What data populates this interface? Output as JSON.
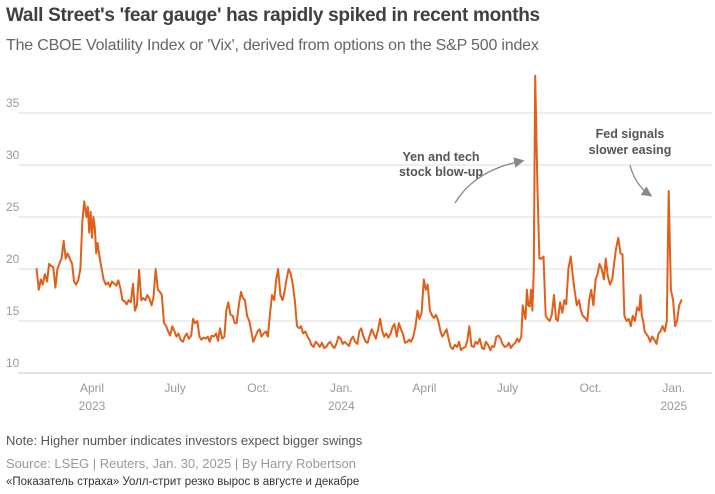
{
  "header": {
    "title": "Wall Street's 'fear gauge' has rapidly spiked in recent months",
    "subtitle": "The CBOE Volatility Index or 'Vix', derived from options on the S&P 500 index"
  },
  "footer": {
    "note": "Note: Higher number indicates investors expect bigger swings",
    "source": "Source: LSEG | Reuters, Jan. 30, 2025 | By Harry Robertson",
    "caption": "«Показатель страха» Уолл-стрит резко вырос в августе и декабре"
  },
  "colors": {
    "line": "#e0601b",
    "grid": "#dddddd",
    "axis": "#999999",
    "annotation": "#555555",
    "arrow": "#888888"
  },
  "chart_data": {
    "type": "line",
    "title": "Wall Street's 'fear gauge' has rapidly spiked in recent months",
    "subtitle": "The CBOE Volatility Index or 'Vix', derived from options on the S&P 500 index",
    "xlabel": "",
    "ylabel": "",
    "ylim": [
      10,
      38
    ],
    "yticks": [
      10,
      15,
      20,
      25,
      30,
      35
    ],
    "grid": true,
    "legend": "none",
    "x_range_months": [
      0,
      24.3
    ],
    "x_origin": "2023-01-01",
    "xticks": [
      {
        "month": 3,
        "label": "April",
        "sublabel": "2023"
      },
      {
        "month": 6,
        "label": "July",
        "sublabel": ""
      },
      {
        "month": 9,
        "label": "Oct.",
        "sublabel": ""
      },
      {
        "month": 12,
        "label": "Jan.",
        "sublabel": "2024"
      },
      {
        "month": 15,
        "label": "April",
        "sublabel": ""
      },
      {
        "month": 18,
        "label": "July",
        "sublabel": ""
      },
      {
        "month": 21,
        "label": "Oct.",
        "sublabel": ""
      },
      {
        "month": 24,
        "label": "Jan.",
        "sublabel": "2025"
      }
    ],
    "series": [
      {
        "name": "VIX",
        "x_months": [
          1.0,
          1.08,
          1.15,
          1.22,
          1.3,
          1.38,
          1.45,
          1.52,
          1.6,
          1.68,
          1.75,
          1.82,
          1.9,
          1.98,
          2.05,
          2.12,
          2.2,
          2.28,
          2.35,
          2.42,
          2.5,
          2.58,
          2.65,
          2.72,
          2.8,
          2.85,
          2.9,
          2.95,
          3.0,
          3.05,
          3.1,
          3.15,
          3.2,
          3.28,
          3.35,
          3.42,
          3.5,
          3.58,
          3.65,
          3.72,
          3.8,
          3.88,
          3.95,
          4.02,
          4.1,
          4.18,
          4.25,
          4.32,
          4.4,
          4.48,
          4.55,
          4.62,
          4.7,
          4.78,
          4.85,
          4.92,
          5.0,
          5.08,
          5.15,
          5.22,
          5.3,
          5.38,
          5.45,
          5.52,
          5.6,
          5.68,
          5.75,
          5.82,
          5.9,
          5.98,
          6.05,
          6.12,
          6.2,
          6.28,
          6.35,
          6.42,
          6.5,
          6.58,
          6.65,
          6.72,
          6.8,
          6.88,
          6.95,
          7.02,
          7.1,
          7.18,
          7.25,
          7.32,
          7.4,
          7.48,
          7.55,
          7.62,
          7.7,
          7.78,
          7.85,
          7.92,
          8.0,
          8.08,
          8.15,
          8.22,
          8.3,
          8.38,
          8.45,
          8.52,
          8.6,
          8.68,
          8.75,
          8.82,
          8.9,
          8.98,
          9.05,
          9.12,
          9.2,
          9.28,
          9.35,
          9.42,
          9.5,
          9.58,
          9.65,
          9.72,
          9.8,
          9.88,
          9.95,
          10.02,
          10.1,
          10.18,
          10.25,
          10.32,
          10.4,
          10.48,
          10.55,
          10.62,
          10.7,
          10.78,
          10.85,
          10.92,
          11.0,
          11.08,
          11.15,
          11.22,
          11.3,
          11.38,
          11.45,
          11.52,
          11.6,
          11.68,
          11.75,
          11.82,
          11.9,
          11.98,
          12.05,
          12.12,
          12.2,
          12.28,
          12.35,
          12.42,
          12.5,
          12.58,
          12.65,
          12.72,
          12.8,
          12.88,
          12.95,
          13.02,
          13.1,
          13.18,
          13.25,
          13.32,
          13.4,
          13.48,
          13.55,
          13.62,
          13.7,
          13.78,
          13.85,
          13.92,
          14.0,
          14.08,
          14.15,
          14.22,
          14.3,
          14.38,
          14.45,
          14.52,
          14.6,
          14.68,
          14.75,
          14.82,
          14.9,
          14.98,
          15.05,
          15.12,
          15.2,
          15.28,
          15.35,
          15.42,
          15.5,
          15.58,
          15.65,
          15.72,
          15.8,
          15.88,
          15.95,
          16.02,
          16.1,
          16.18,
          16.25,
          16.32,
          16.4,
          16.48,
          16.55,
          16.62,
          16.7,
          16.78,
          16.85,
          16.92,
          17.0,
          17.08,
          17.15,
          17.22,
          17.3,
          17.38,
          17.45,
          17.52,
          17.6,
          17.68,
          17.75,
          17.82,
          17.9,
          17.98,
          18.05,
          18.12,
          18.2,
          18.28,
          18.35,
          18.42,
          18.5,
          18.55,
          18.6,
          18.65,
          18.7,
          18.75,
          18.8,
          18.85,
          18.9,
          18.95,
          19.0,
          19.08,
          19.15,
          19.22,
          19.3,
          19.38,
          19.45,
          19.52,
          19.6,
          19.68,
          19.75,
          19.82,
          19.9,
          19.98,
          20.05,
          20.12,
          20.2,
          20.28,
          20.35,
          20.42,
          20.5,
          20.58,
          20.65,
          20.72,
          20.8,
          20.88,
          20.95,
          21.02,
          21.1,
          21.18,
          21.25,
          21.32,
          21.4,
          21.48,
          21.55,
          21.62,
          21.7,
          21.78,
          21.85,
          21.92,
          22.0,
          22.08,
          22.15,
          22.22,
          22.3,
          22.38,
          22.45,
          22.52,
          22.6,
          22.68,
          22.75,
          22.8,
          22.85,
          22.9,
          22.95,
          23.0,
          23.08,
          23.15,
          23.22,
          23.3,
          23.38,
          23.45,
          23.52,
          23.6,
          23.68,
          23.75,
          23.82,
          23.9,
          23.98,
          24.05,
          24.12,
          24.2,
          24.28
        ],
        "values": [
          20.0,
          18.0,
          19.0,
          18.5,
          19.5,
          18.8,
          20.5,
          20.3,
          20.2,
          18.2,
          20.0,
          20.5,
          21.0,
          22.7,
          21.0,
          21.5,
          21.0,
          20.5,
          18.8,
          18.5,
          18.9,
          20.0,
          24.5,
          26.5,
          25.0,
          26.0,
          23.5,
          25.5,
          23.0,
          25.0,
          24.0,
          21.5,
          22.5,
          21.0,
          20.0,
          19.0,
          18.5,
          18.7,
          18.3,
          18.8,
          18.6,
          18.4,
          18.9,
          18.2,
          17.0,
          16.9,
          16.6,
          17.0,
          16.8,
          18.6,
          16.0,
          16.5,
          19.9,
          17.0,
          17.2,
          17.0,
          17.5,
          17.1,
          16.5,
          17.3,
          20.0,
          18.0,
          17.8,
          17.5,
          14.8,
          14.5,
          14.0,
          13.6,
          14.5,
          14.0,
          13.5,
          13.8,
          13.2,
          13.0,
          13.5,
          13.8,
          13.3,
          13.6,
          15.2,
          14.8,
          15.0,
          13.5,
          13.2,
          13.4,
          13.3,
          13.5,
          13.0,
          13.6,
          13.5,
          13.8,
          13.1,
          14.3,
          13.3,
          13.5,
          16.0,
          16.8,
          15.6,
          15.5,
          14.8,
          14.8,
          16.5,
          17.8,
          17.2,
          17.0,
          15.5,
          15.0,
          14.0,
          13.0,
          13.5,
          14.0,
          14.2,
          13.5,
          13.8,
          14.0,
          13.5,
          15.5,
          17.5,
          17.0,
          19.0,
          20.0,
          17.5,
          17.0,
          17.8,
          19.0,
          20.0,
          19.5,
          18.5,
          17.0,
          14.5,
          14.3,
          14.5,
          13.8,
          14.0,
          13.5,
          13.2,
          12.7,
          12.5,
          13.0,
          12.8,
          12.5,
          12.9,
          12.4,
          12.5,
          12.8,
          13.0,
          12.6,
          12.4,
          12.8,
          13.5,
          13.3,
          12.8,
          13.0,
          12.8,
          12.6,
          13.2,
          13.5,
          13.0,
          12.8,
          14.0,
          14.3,
          13.5,
          13.0,
          12.9,
          13.6,
          14.2,
          13.7,
          13.3,
          14.1,
          15.2,
          14.0,
          13.5,
          13.8,
          13.4,
          13.8,
          14.4,
          14.7,
          13.5,
          14.8,
          14.2,
          13.8,
          12.9,
          13.0,
          13.2,
          13.0,
          13.5,
          14.5,
          16.0,
          15.2,
          15.8,
          19.0,
          18.0,
          18.5,
          16.0,
          15.5,
          15.3,
          15.6,
          15.0,
          14.0,
          13.5,
          13.8,
          14.2,
          13.2,
          12.5,
          12.3,
          12.7,
          12.5,
          13.0,
          12.2,
          12.4,
          12.5,
          13.1,
          14.5,
          12.6,
          12.5,
          13.0,
          12.8,
          13.3,
          12.4,
          12.3,
          13.0,
          12.7,
          12.2,
          12.6,
          12.5,
          13.5,
          13.6,
          13.3,
          12.8,
          12.5,
          12.6,
          12.9,
          12.4,
          12.7,
          12.9,
          13.3,
          13.0,
          13.5,
          16.5,
          15.8,
          15.2,
          18.0,
          16.5,
          16.4,
          18.0,
          16.0,
          20.0,
          38.6,
          28.0,
          21.0,
          21.0,
          21.2,
          15.5,
          15.2,
          15.0,
          15.6,
          17.5,
          15.2,
          15.0,
          16.8,
          15.8,
          17.0,
          16.6,
          20.0,
          21.2,
          19.5,
          18.0,
          16.5,
          17.0,
          16.0,
          15.5,
          15.3,
          15.0,
          17.0,
          18.0,
          16.5,
          19.0,
          19.5,
          20.5,
          20.0,
          19.0,
          21.0,
          19.3,
          18.5,
          19.0,
          20.5,
          22.0,
          23.0,
          21.5,
          21.4,
          15.5,
          15.0,
          15.2,
          14.5,
          15.5,
          15.0,
          16.3,
          16.0,
          17.5,
          15.5,
          15.0,
          14.0,
          13.8,
          13.5,
          13.0,
          13.5,
          13.2,
          12.8,
          13.8,
          14.0,
          14.5,
          14.0,
          15.0,
          27.5,
          18.0,
          17.0,
          14.5,
          15.0,
          16.5,
          17.0,
          17.5,
          18.0,
          16.5,
          16.0,
          17.5,
          19.5,
          19.3,
          16.5,
          16.5,
          15.8,
          15.6,
          15.0,
          14.8,
          17.5,
          15.5,
          16.2
        ]
      }
    ],
    "annotations": [
      {
        "text_lines": [
          "Yen and tech",
          "stock blow-up"
        ],
        "points_to": "Aug 2024 spike"
      },
      {
        "text_lines": [
          "Fed signals",
          "slower easing"
        ],
        "points_to": "Dec 2024 spike"
      }
    ]
  }
}
